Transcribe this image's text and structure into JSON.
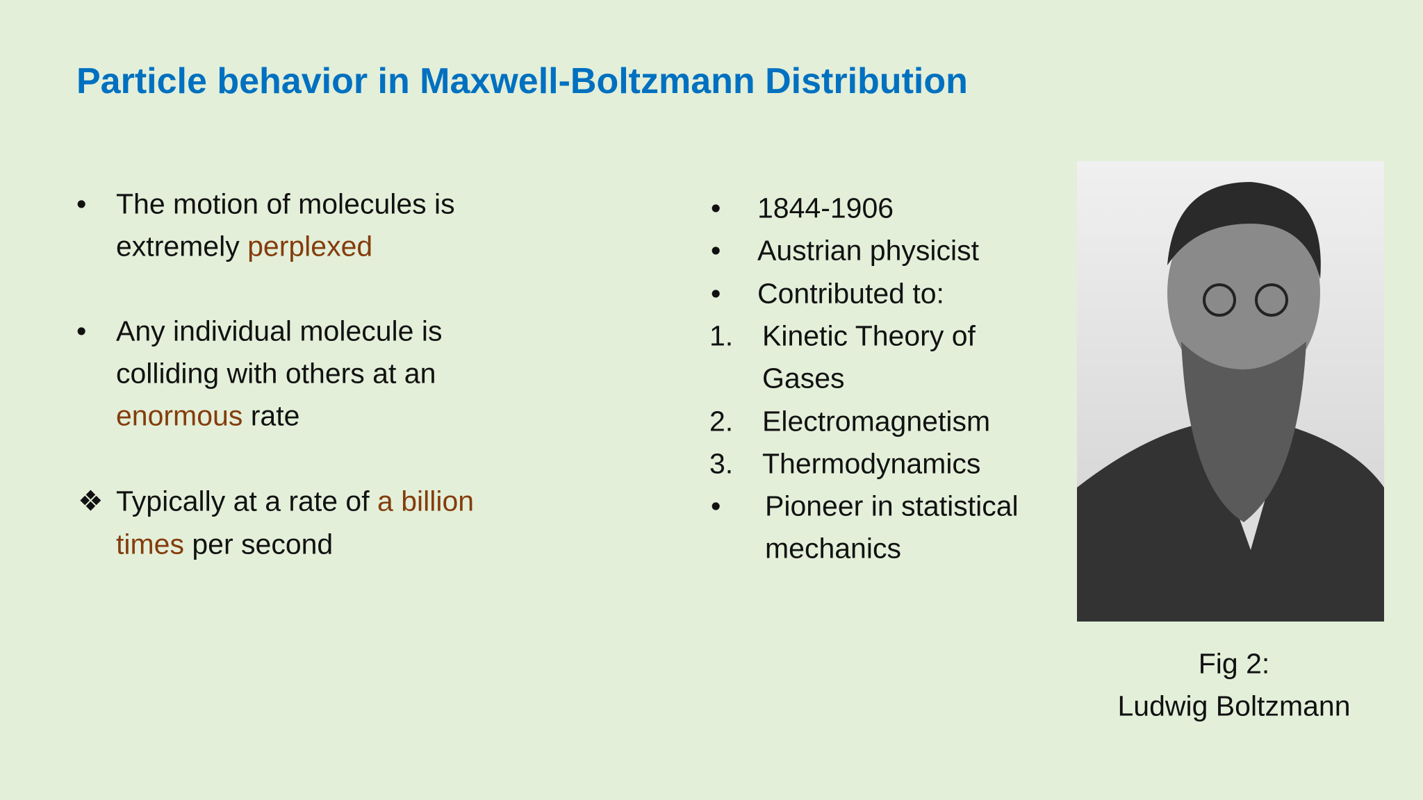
{
  "title": "Particle behavior in Maxwell-Boltzmann Distribution",
  "left": {
    "items": [
      {
        "marker": "•",
        "lines": [
          [
            {
              "text": "The motion of molecules is"
            }
          ],
          [
            {
              "text": "extremely"
            },
            {
              "text": "perplexed",
              "accent": true
            }
          ]
        ]
      },
      {
        "marker": "•",
        "lines": [
          [
            {
              "text": "Any individual molecule is"
            }
          ],
          [
            {
              "text": "colliding with others at an"
            }
          ],
          [
            {
              "text": "enormous",
              "accent": true
            },
            {
              "text": "rate"
            }
          ]
        ]
      },
      {
        "marker": "❖",
        "lines": [
          [
            {
              "text": "Typically at a rate of"
            },
            {
              "text": "a billion",
              "accent": true
            }
          ],
          [
            {
              "text": "times",
              "accent": true
            },
            {
              "text": "per second"
            }
          ]
        ]
      }
    ]
  },
  "right": {
    "items": [
      {
        "marker": "•",
        "lines": [
          "1844-1906"
        ]
      },
      {
        "marker": "•",
        "lines": [
          "Austrian physicist"
        ]
      },
      {
        "marker": "•",
        "lines": [
          "Contributed to:"
        ]
      },
      {
        "marker": "1.",
        "lines": [
          "Kinetic Theory of",
          "Gases"
        ]
      },
      {
        "marker": "2.",
        "lines": [
          "Electromagnetism"
        ]
      },
      {
        "marker": "3.",
        "lines": [
          "Thermodynamics"
        ]
      },
      {
        "marker": "•",
        "lines": [
          "Pioneer in statistical",
          "mechanics"
        ]
      }
    ]
  },
  "figure": {
    "caption": [
      "Fig 2:",
      "Ludwig Boltzmann"
    ]
  }
}
